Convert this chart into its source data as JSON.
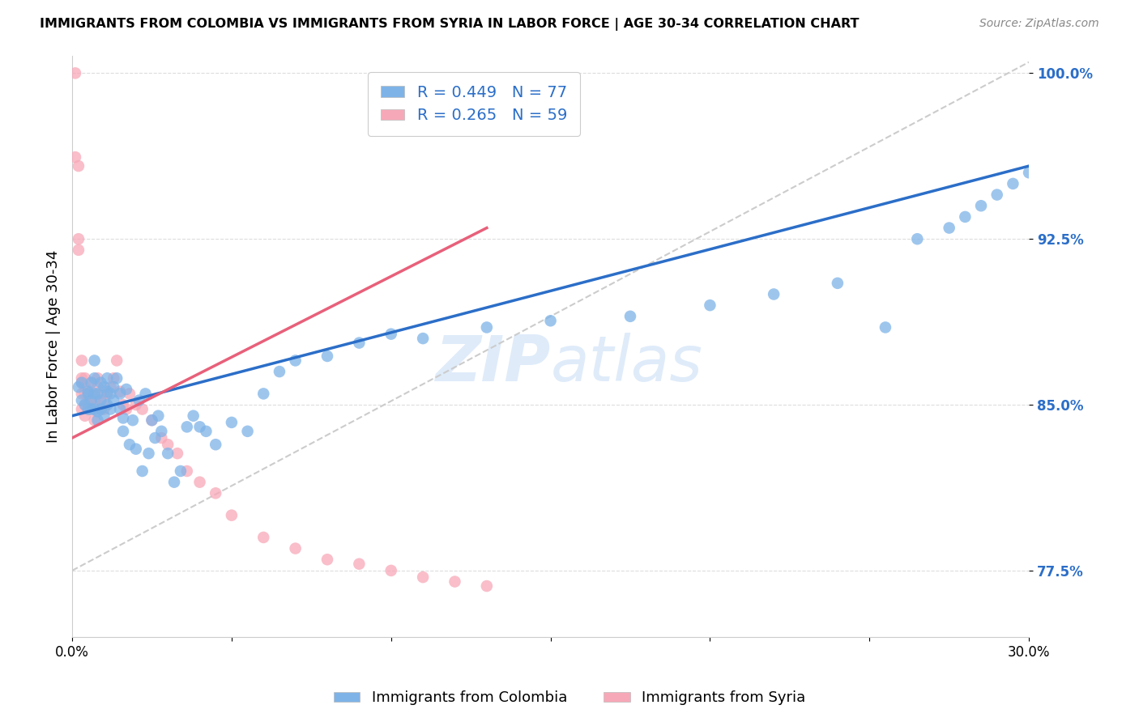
{
  "title": "IMMIGRANTS FROM COLOMBIA VS IMMIGRANTS FROM SYRIA IN LABOR FORCE | AGE 30-34 CORRELATION CHART",
  "source": "Source: ZipAtlas.com",
  "ylabel": "In Labor Force | Age 30-34",
  "x_min": 0.0,
  "x_max": 0.3,
  "y_min": 0.745,
  "y_max": 1.008,
  "y_ticks": [
    0.775,
    0.85,
    0.925,
    1.0
  ],
  "y_tick_labels": [
    "77.5%",
    "85.0%",
    "92.5%",
    "100.0%"
  ],
  "colombia_R": 0.449,
  "colombia_N": 77,
  "syria_R": 0.265,
  "syria_N": 59,
  "colombia_color": "#7EB3E8",
  "syria_color": "#F7A8B8",
  "colombia_trend_color": "#2B6EC8",
  "syria_trend_color": "#E8607A",
  "legend_colombia": "Immigrants from Colombia",
  "legend_syria": "Immigrants from Syria",
  "watermark": "ZIPatlas",
  "colombia_x": [
    0.002,
    0.003,
    0.003,
    0.004,
    0.005,
    0.005,
    0.005,
    0.006,
    0.006,
    0.006,
    0.007,
    0.007,
    0.007,
    0.007,
    0.008,
    0.008,
    0.008,
    0.009,
    0.009,
    0.009,
    0.01,
    0.01,
    0.011,
    0.011,
    0.011,
    0.012,
    0.012,
    0.013,
    0.013,
    0.014,
    0.015,
    0.015,
    0.016,
    0.016,
    0.017,
    0.018,
    0.019,
    0.02,
    0.021,
    0.022,
    0.023,
    0.024,
    0.025,
    0.026,
    0.027,
    0.028,
    0.03,
    0.032,
    0.034,
    0.036,
    0.038,
    0.04,
    0.042,
    0.045,
    0.05,
    0.055,
    0.06,
    0.065,
    0.07,
    0.08,
    0.09,
    0.1,
    0.11,
    0.13,
    0.15,
    0.175,
    0.2,
    0.22,
    0.24,
    0.255,
    0.265,
    0.275,
    0.28,
    0.285,
    0.29,
    0.295,
    0.3
  ],
  "colombia_y": [
    0.858,
    0.86,
    0.852,
    0.85,
    0.856,
    0.848,
    0.855,
    0.852,
    0.848,
    0.86,
    0.848,
    0.855,
    0.862,
    0.87,
    0.843,
    0.847,
    0.855,
    0.852,
    0.86,
    0.848,
    0.845,
    0.858,
    0.85,
    0.856,
    0.862,
    0.848,
    0.855,
    0.852,
    0.858,
    0.862,
    0.848,
    0.855,
    0.838,
    0.844,
    0.857,
    0.832,
    0.843,
    0.83,
    0.852,
    0.82,
    0.855,
    0.828,
    0.843,
    0.835,
    0.845,
    0.838,
    0.828,
    0.815,
    0.82,
    0.84,
    0.845,
    0.84,
    0.838,
    0.832,
    0.842,
    0.838,
    0.855,
    0.865,
    0.87,
    0.872,
    0.878,
    0.882,
    0.88,
    0.885,
    0.888,
    0.89,
    0.895,
    0.9,
    0.905,
    0.885,
    0.925,
    0.93,
    0.935,
    0.94,
    0.945,
    0.95,
    0.955
  ],
  "syria_x": [
    0.001,
    0.001,
    0.002,
    0.002,
    0.002,
    0.003,
    0.003,
    0.003,
    0.003,
    0.003,
    0.004,
    0.004,
    0.004,
    0.004,
    0.004,
    0.005,
    0.005,
    0.005,
    0.005,
    0.006,
    0.006,
    0.006,
    0.007,
    0.007,
    0.007,
    0.007,
    0.008,
    0.008,
    0.008,
    0.009,
    0.009,
    0.01,
    0.01,
    0.011,
    0.012,
    0.013,
    0.014,
    0.015,
    0.016,
    0.017,
    0.018,
    0.02,
    0.022,
    0.025,
    0.028,
    0.03,
    0.033,
    0.036,
    0.04,
    0.045,
    0.05,
    0.06,
    0.07,
    0.08,
    0.09,
    0.1,
    0.11,
    0.12,
    0.13
  ],
  "syria_y": [
    1.0,
    0.962,
    0.958,
    0.925,
    0.92,
    0.86,
    0.855,
    0.87,
    0.862,
    0.848,
    0.858,
    0.855,
    0.85,
    0.862,
    0.845,
    0.855,
    0.85,
    0.848,
    0.855,
    0.852,
    0.848,
    0.86,
    0.852,
    0.855,
    0.848,
    0.843,
    0.858,
    0.85,
    0.862,
    0.848,
    0.855,
    0.852,
    0.848,
    0.855,
    0.858,
    0.862,
    0.87,
    0.856,
    0.85,
    0.848,
    0.855,
    0.85,
    0.848,
    0.843,
    0.835,
    0.832,
    0.828,
    0.82,
    0.815,
    0.81,
    0.8,
    0.79,
    0.785,
    0.78,
    0.778,
    0.775,
    0.772,
    0.77,
    0.768
  ],
  "ref_line_x": [
    0.0,
    0.3
  ],
  "ref_line_y": [
    0.775,
    1.005
  ],
  "colombia_trend_x": [
    0.0,
    0.3
  ],
  "colombia_trend_y": [
    0.845,
    0.958
  ],
  "syria_trend_x": [
    0.0,
    0.13
  ],
  "syria_trend_y": [
    0.835,
    0.93
  ]
}
